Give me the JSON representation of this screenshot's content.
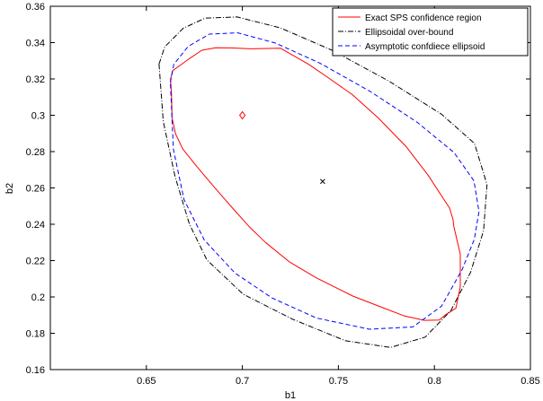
{
  "chart_data": {
    "type": "line",
    "xlabel": "b1",
    "ylabel": "b2",
    "xlim": [
      0.6,
      0.85
    ],
    "ylim": [
      0.16,
      0.36
    ],
    "xticks": [
      "0.65",
      "0.7",
      "0.75",
      "0.8",
      "0.85"
    ],
    "yticks": [
      "0.16",
      "0.18",
      "0.2",
      "0.22",
      "0.24",
      "0.26",
      "0.28",
      "0.3",
      "0.32",
      "0.34",
      "0.36"
    ],
    "legend_position": "top-right",
    "series": [
      {
        "name": "Exact SPS confidence region",
        "style": "solid",
        "color": "#ff0000",
        "x": [
          0.6626,
          0.6631,
          0.6634,
          0.6652,
          0.669,
          0.6765,
          0.6859,
          0.6949,
          0.7039,
          0.7121,
          0.7245,
          0.7385,
          0.7575,
          0.7725,
          0.7845,
          0.7949,
          0.8025,
          0.8061,
          0.8112,
          0.8135,
          0.8135,
          0.8101,
          0.8097,
          0.8079,
          0.7967,
          0.7855,
          0.7708,
          0.7572,
          0.7426,
          0.7343,
          0.7199,
          0.7042,
          0.6936,
          0.6861,
          0.6789,
          0.6727,
          0.6681,
          0.6637,
          0.6626
        ],
        "y": [
          0.32,
          0.3111,
          0.2986,
          0.2897,
          0.2814,
          0.2715,
          0.2598,
          0.2489,
          0.2383,
          0.23,
          0.2193,
          0.2105,
          0.2005,
          0.1943,
          0.1895,
          0.1871,
          0.1873,
          0.1904,
          0.1938,
          0.2057,
          0.2236,
          0.2388,
          0.2427,
          0.2489,
          0.267,
          0.2825,
          0.2985,
          0.3114,
          0.3222,
          0.3282,
          0.3369,
          0.3366,
          0.3371,
          0.3372,
          0.3358,
          0.3314,
          0.3279,
          0.3246,
          0.32
        ]
      },
      {
        "name": "Ellipsoidal over-bound",
        "style": "dashdot",
        "color": "#000000",
        "center": [
          0.7418,
          0.2636
        ],
        "x": [
          0.6566,
          0.6596,
          0.6692,
          0.6806,
          0.6973,
          0.7198,
          0.7465,
          0.7763,
          0.8037,
          0.8209,
          0.8274,
          0.8256,
          0.8188,
          0.8086,
          0.7952,
          0.7772,
          0.7536,
          0.7262,
          0.7004,
          0.6815,
          0.6724,
          0.6649,
          0.6588,
          0.6566
        ],
        "y": [
          0.3282,
          0.3377,
          0.3479,
          0.3535,
          0.3541,
          0.3481,
          0.3359,
          0.3188,
          0.3006,
          0.2845,
          0.2619,
          0.2365,
          0.2135,
          0.1925,
          0.1779,
          0.1722,
          0.1759,
          0.1877,
          0.2015,
          0.2204,
          0.2402,
          0.2665,
          0.2966,
          0.3282
        ]
      },
      {
        "name": "Asymptotic confdiece ellipsoid",
        "style": "dashed",
        "color": "#0000ff",
        "x": [
          0.6625,
          0.6643,
          0.6717,
          0.6828,
          0.6976,
          0.7171,
          0.7404,
          0.7666,
          0.7911,
          0.8102,
          0.8206,
          0.8232,
          0.8208,
          0.8144,
          0.8037,
          0.7888,
          0.7662,
          0.7386,
          0.7155,
          0.6962,
          0.6802,
          0.6696,
          0.6641,
          0.6625
        ],
        "y": [
          0.3181,
          0.328,
          0.3379,
          0.3447,
          0.3454,
          0.3398,
          0.3287,
          0.3131,
          0.2961,
          0.2795,
          0.2639,
          0.247,
          0.2317,
          0.215,
          0.1949,
          0.1835,
          0.1822,
          0.1884,
          0.1994,
          0.2131,
          0.2313,
          0.2536,
          0.2812,
          0.3181
        ]
      }
    ],
    "markers": [
      {
        "symbol": "diamond",
        "color": "#ff0000",
        "x": 0.7,
        "y": 0.3
      },
      {
        "symbol": "cross",
        "color": "#000000",
        "x": 0.7418,
        "y": 0.2636
      }
    ]
  }
}
